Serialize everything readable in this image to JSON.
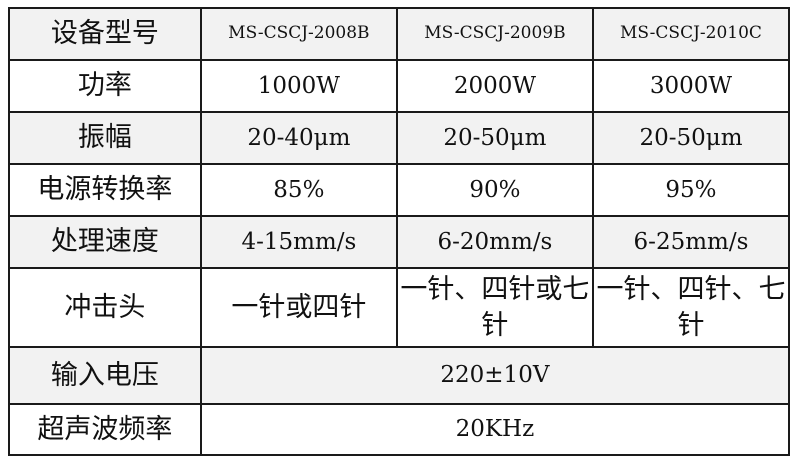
{
  "table": {
    "header": {
      "label": "设备型号",
      "models": [
        "MS-CSCJ-2008B",
        "MS-CSCJ-2009B",
        "MS-CSCJ-2010C"
      ]
    },
    "rows": [
      {
        "label": "功率",
        "values": [
          "1000W",
          "2000W",
          "3000W"
        ]
      },
      {
        "label": "振幅",
        "values": [
          "20-40μm",
          "20-50μm",
          "20-50μm"
        ]
      },
      {
        "label": "电源转换率",
        "values": [
          "85%",
          "90%",
          "95%"
        ]
      },
      {
        "label": "处理速度",
        "values": [
          "4-15mm/s",
          "6-20mm/s",
          "6-25mm/s"
        ]
      },
      {
        "label": "冲击头",
        "values": [
          "一针或四针",
          "一针、四针或七针",
          "一针、四针、七针"
        ]
      },
      {
        "label": "输入电压",
        "value": "220±10V"
      },
      {
        "label": "超声波频率",
        "value": "20KHz"
      }
    ]
  },
  "colors": {
    "stripe": "#f2f2f2",
    "border": "#1a1a1a"
  }
}
